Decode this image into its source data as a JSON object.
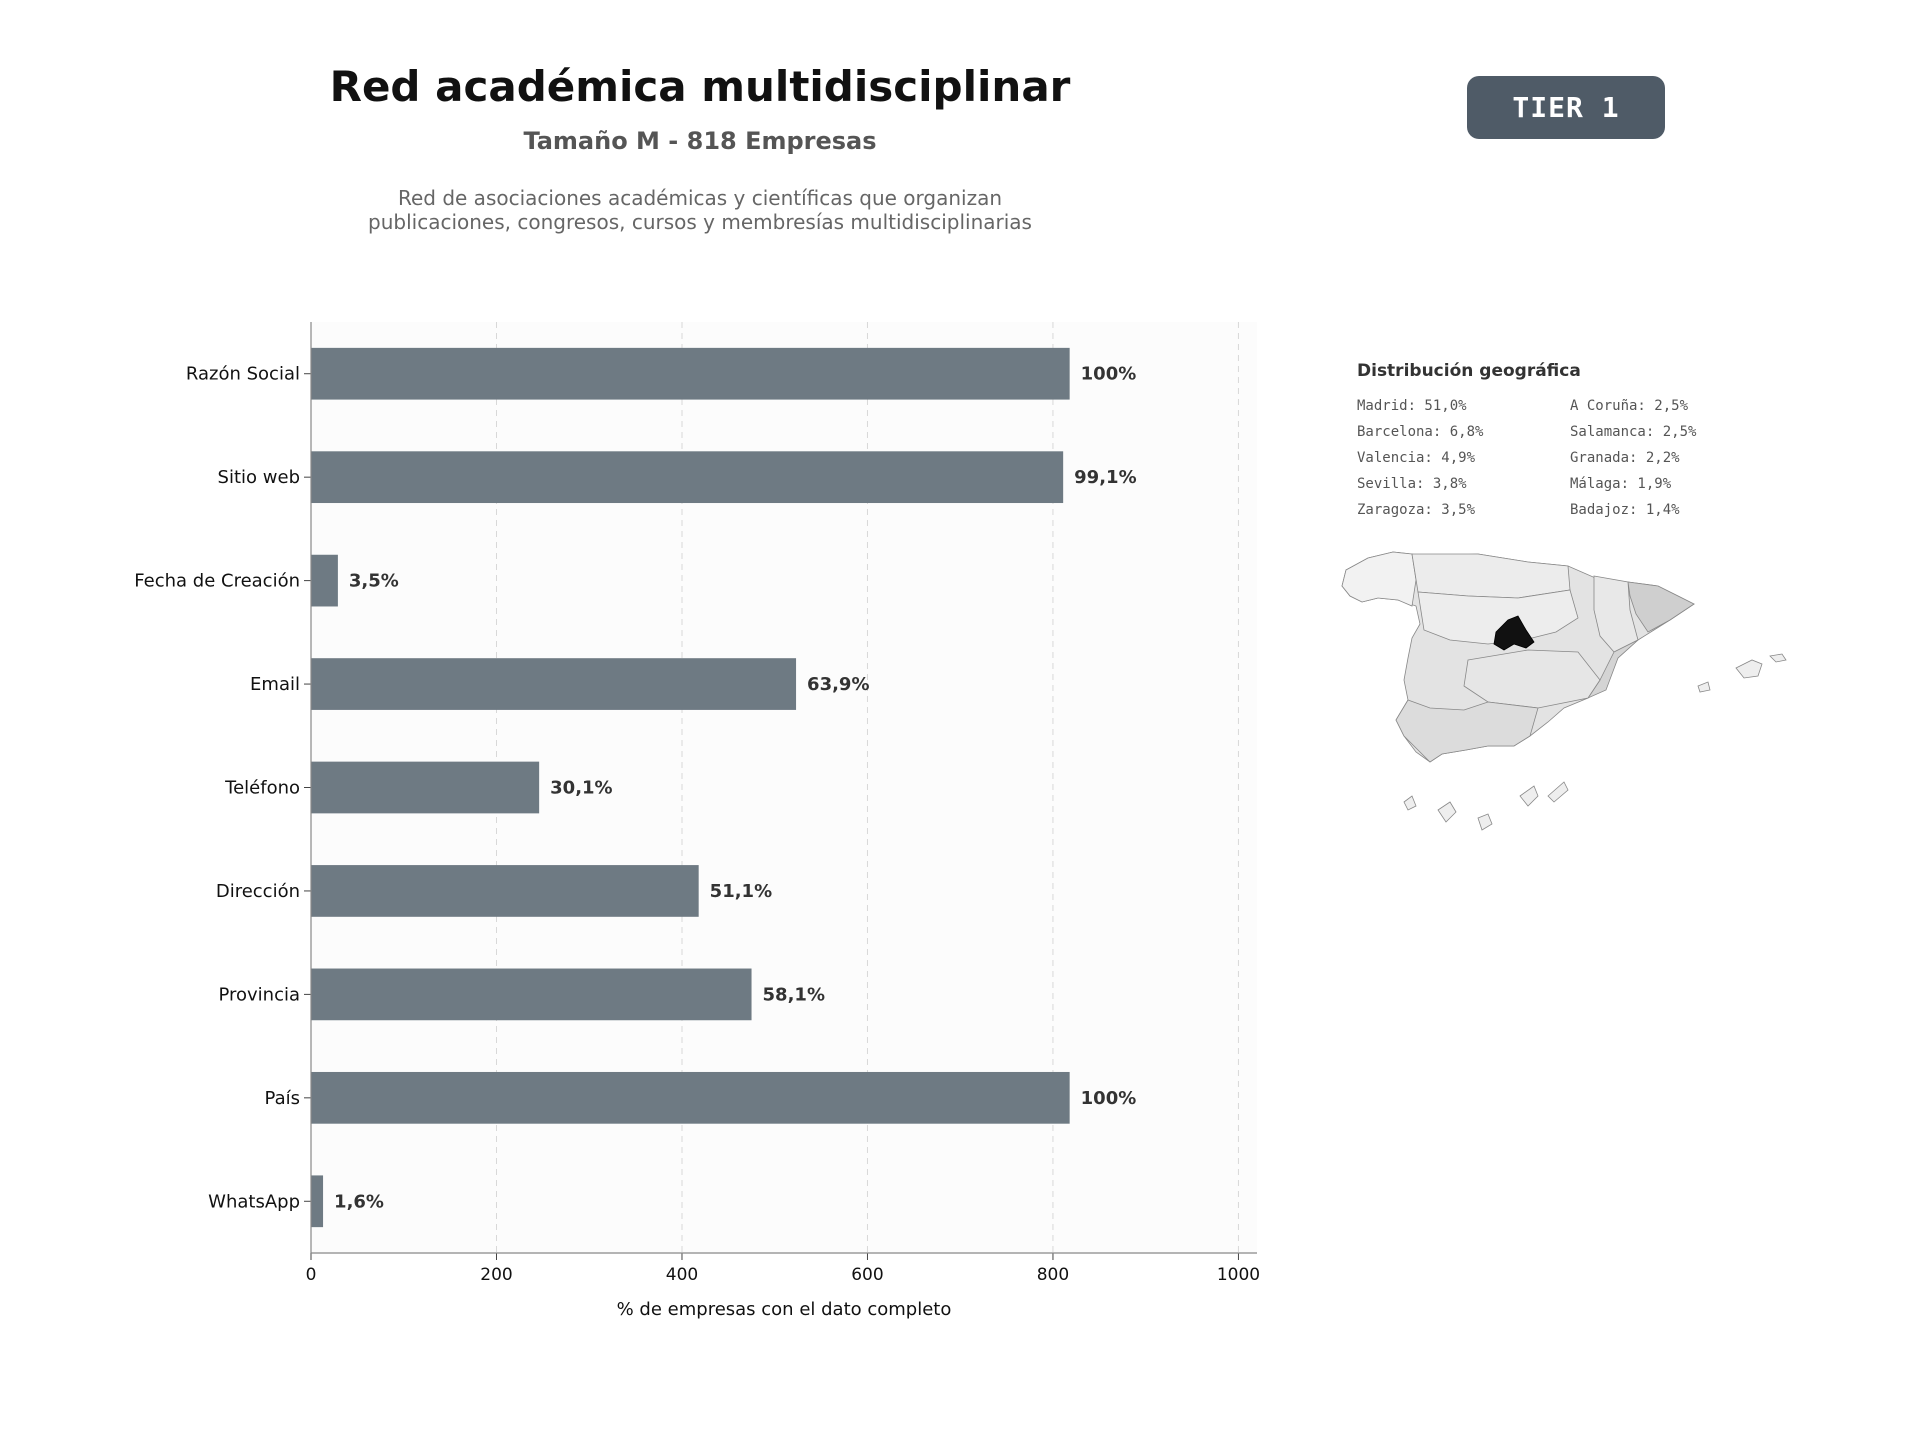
{
  "header": {
    "title": "Red académica multidisciplinar",
    "subtitle": "Tamaño M - 818 Empresas",
    "description_line1": "Red de asociaciones académicas y científicas que organizan",
    "description_line2": "publicaciones, congresos, cursos y membresías multidisciplinarias",
    "badge": "TIER 1"
  },
  "geo": {
    "title": "Distribución geográfica",
    "col1": [
      "Madrid: 51,0%",
      "Barcelona: 6,8%",
      "Valencia: 4,9%",
      "Sevilla: 3,8%",
      "Zaragoza: 3,5%"
    ],
    "col2": [
      "A Coruña: 2,5%",
      "Salamanca: 2,5%",
      "Granada: 2,2%",
      "Málaga: 1,9%",
      "Badajoz: 1,4%"
    ]
  },
  "colors": {
    "bar": "#6e7a83",
    "badge": "#4f5b67",
    "plot_bg": "#fcfcfc",
    "map_highlight": "#111111"
  },
  "chart_data": {
    "type": "bar",
    "orientation": "horizontal",
    "categories": [
      "Razón Social",
      "Sitio web",
      "Fecha de Creación",
      "Email",
      "Teléfono",
      "Dirección",
      "Provincia",
      "País",
      "WhatsApp"
    ],
    "values": [
      818,
      811,
      29,
      523,
      246,
      418,
      475,
      818,
      13
    ],
    "labels": [
      "100%",
      "99,1%",
      "3,5%",
      "63,9%",
      "30,1%",
      "51,1%",
      "58,1%",
      "100%",
      "1,6%"
    ],
    "xlabel": "% de empresas con el dato completo",
    "ylabel": "",
    "xlim": [
      0,
      1020
    ],
    "xticks": [
      0,
      200,
      400,
      600,
      800,
      1000
    ],
    "grid": true
  }
}
